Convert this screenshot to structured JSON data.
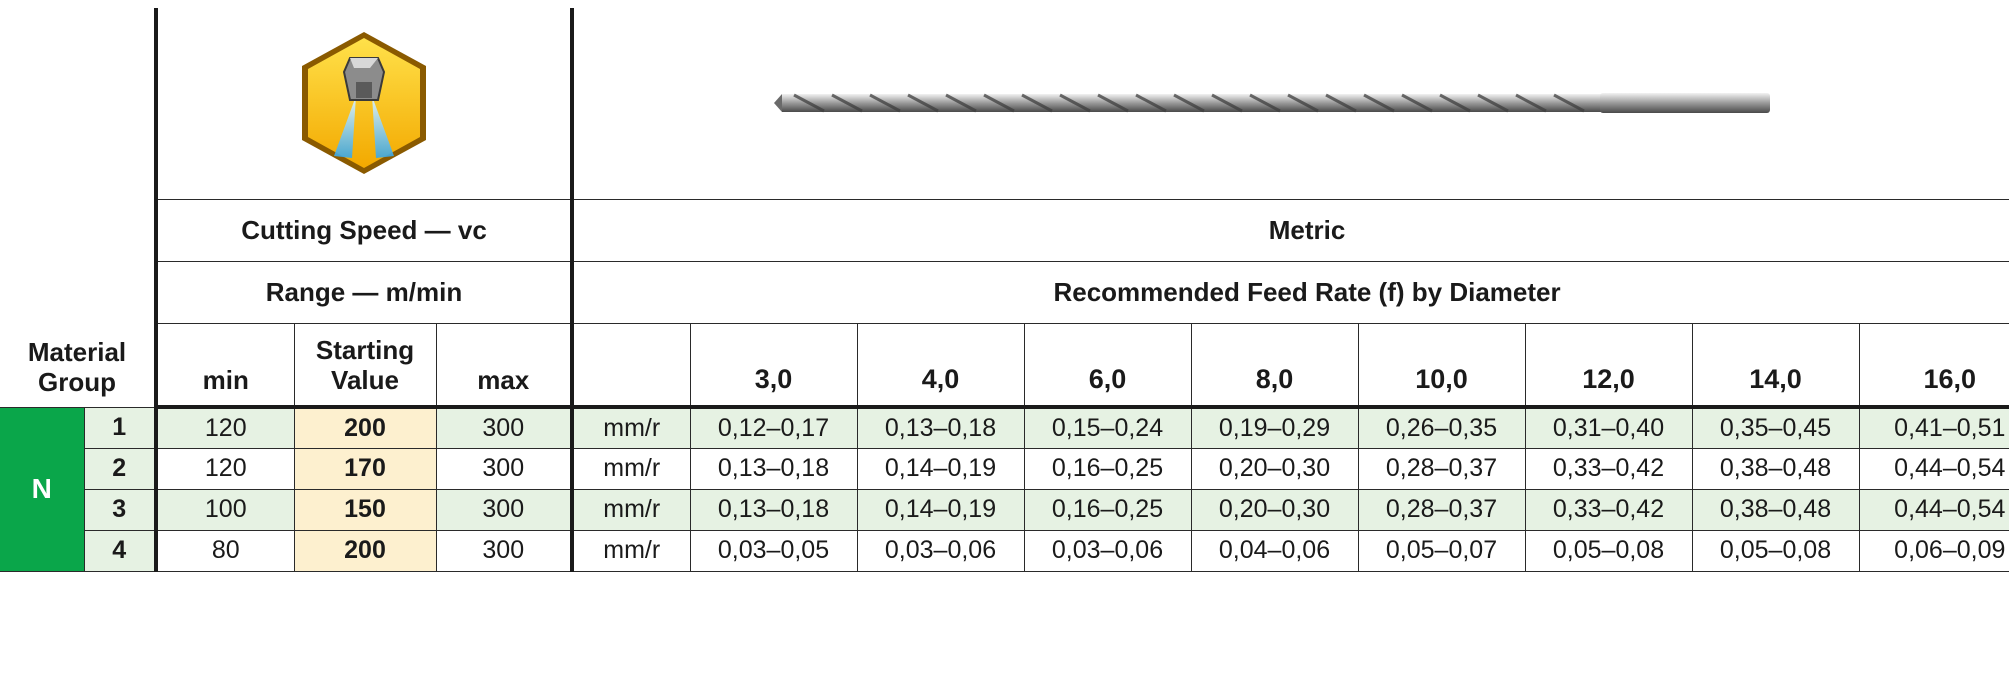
{
  "header": {
    "material_group": "Material Group",
    "cutting_speed": "Cutting Speed — vc",
    "range": "Range — m/min",
    "metric": "Metric",
    "feed_rate": "Recommended Feed Rate (f) by Diameter",
    "min": "min",
    "starting_value": "Starting Value",
    "max": "max",
    "diameters": [
      "3,0",
      "4,0",
      "6,0",
      "8,0",
      "10,0",
      "12,0",
      "14,0",
      "16,0"
    ]
  },
  "group_letter": "N",
  "icons": {
    "coolant": "coolant-hexagon-icon",
    "drill": "long-drill-image"
  },
  "colors": {
    "group": "#0aa64a",
    "row_shade": "#e6f2e3",
    "starting_value": "#fdf0cf"
  },
  "rows": [
    {
      "num": "1",
      "min": "120",
      "start": "200",
      "max": "300",
      "unit": "mm/r",
      "feeds": [
        "0,12–0,17",
        "0,13–0,18",
        "0,15–0,24",
        "0,19–0,29",
        "0,26–0,35",
        "0,31–0,40",
        "0,35–0,45",
        "0,41–0,51"
      ]
    },
    {
      "num": "2",
      "min": "120",
      "start": "170",
      "max": "300",
      "unit": "mm/r",
      "feeds": [
        "0,13–0,18",
        "0,14–0,19",
        "0,16–0,25",
        "0,20–0,30",
        "0,28–0,37",
        "0,33–0,42",
        "0,38–0,48",
        "0,44–0,54"
      ]
    },
    {
      "num": "3",
      "min": "100",
      "start": "150",
      "max": "300",
      "unit": "mm/r",
      "feeds": [
        "0,13–0,18",
        "0,14–0,19",
        "0,16–0,25",
        "0,20–0,30",
        "0,28–0,37",
        "0,33–0,42",
        "0,38–0,48",
        "0,44–0,54"
      ]
    },
    {
      "num": "4",
      "min": "80",
      "start": "200",
      "max": "300",
      "unit": "mm/r",
      "feeds": [
        "0,03–0,05",
        "0,03–0,06",
        "0,03–0,06",
        "0,04–0,06",
        "0,05–0,07",
        "0,05–0,08",
        "0,05–0,08",
        "0,06–0,09"
      ]
    }
  ]
}
